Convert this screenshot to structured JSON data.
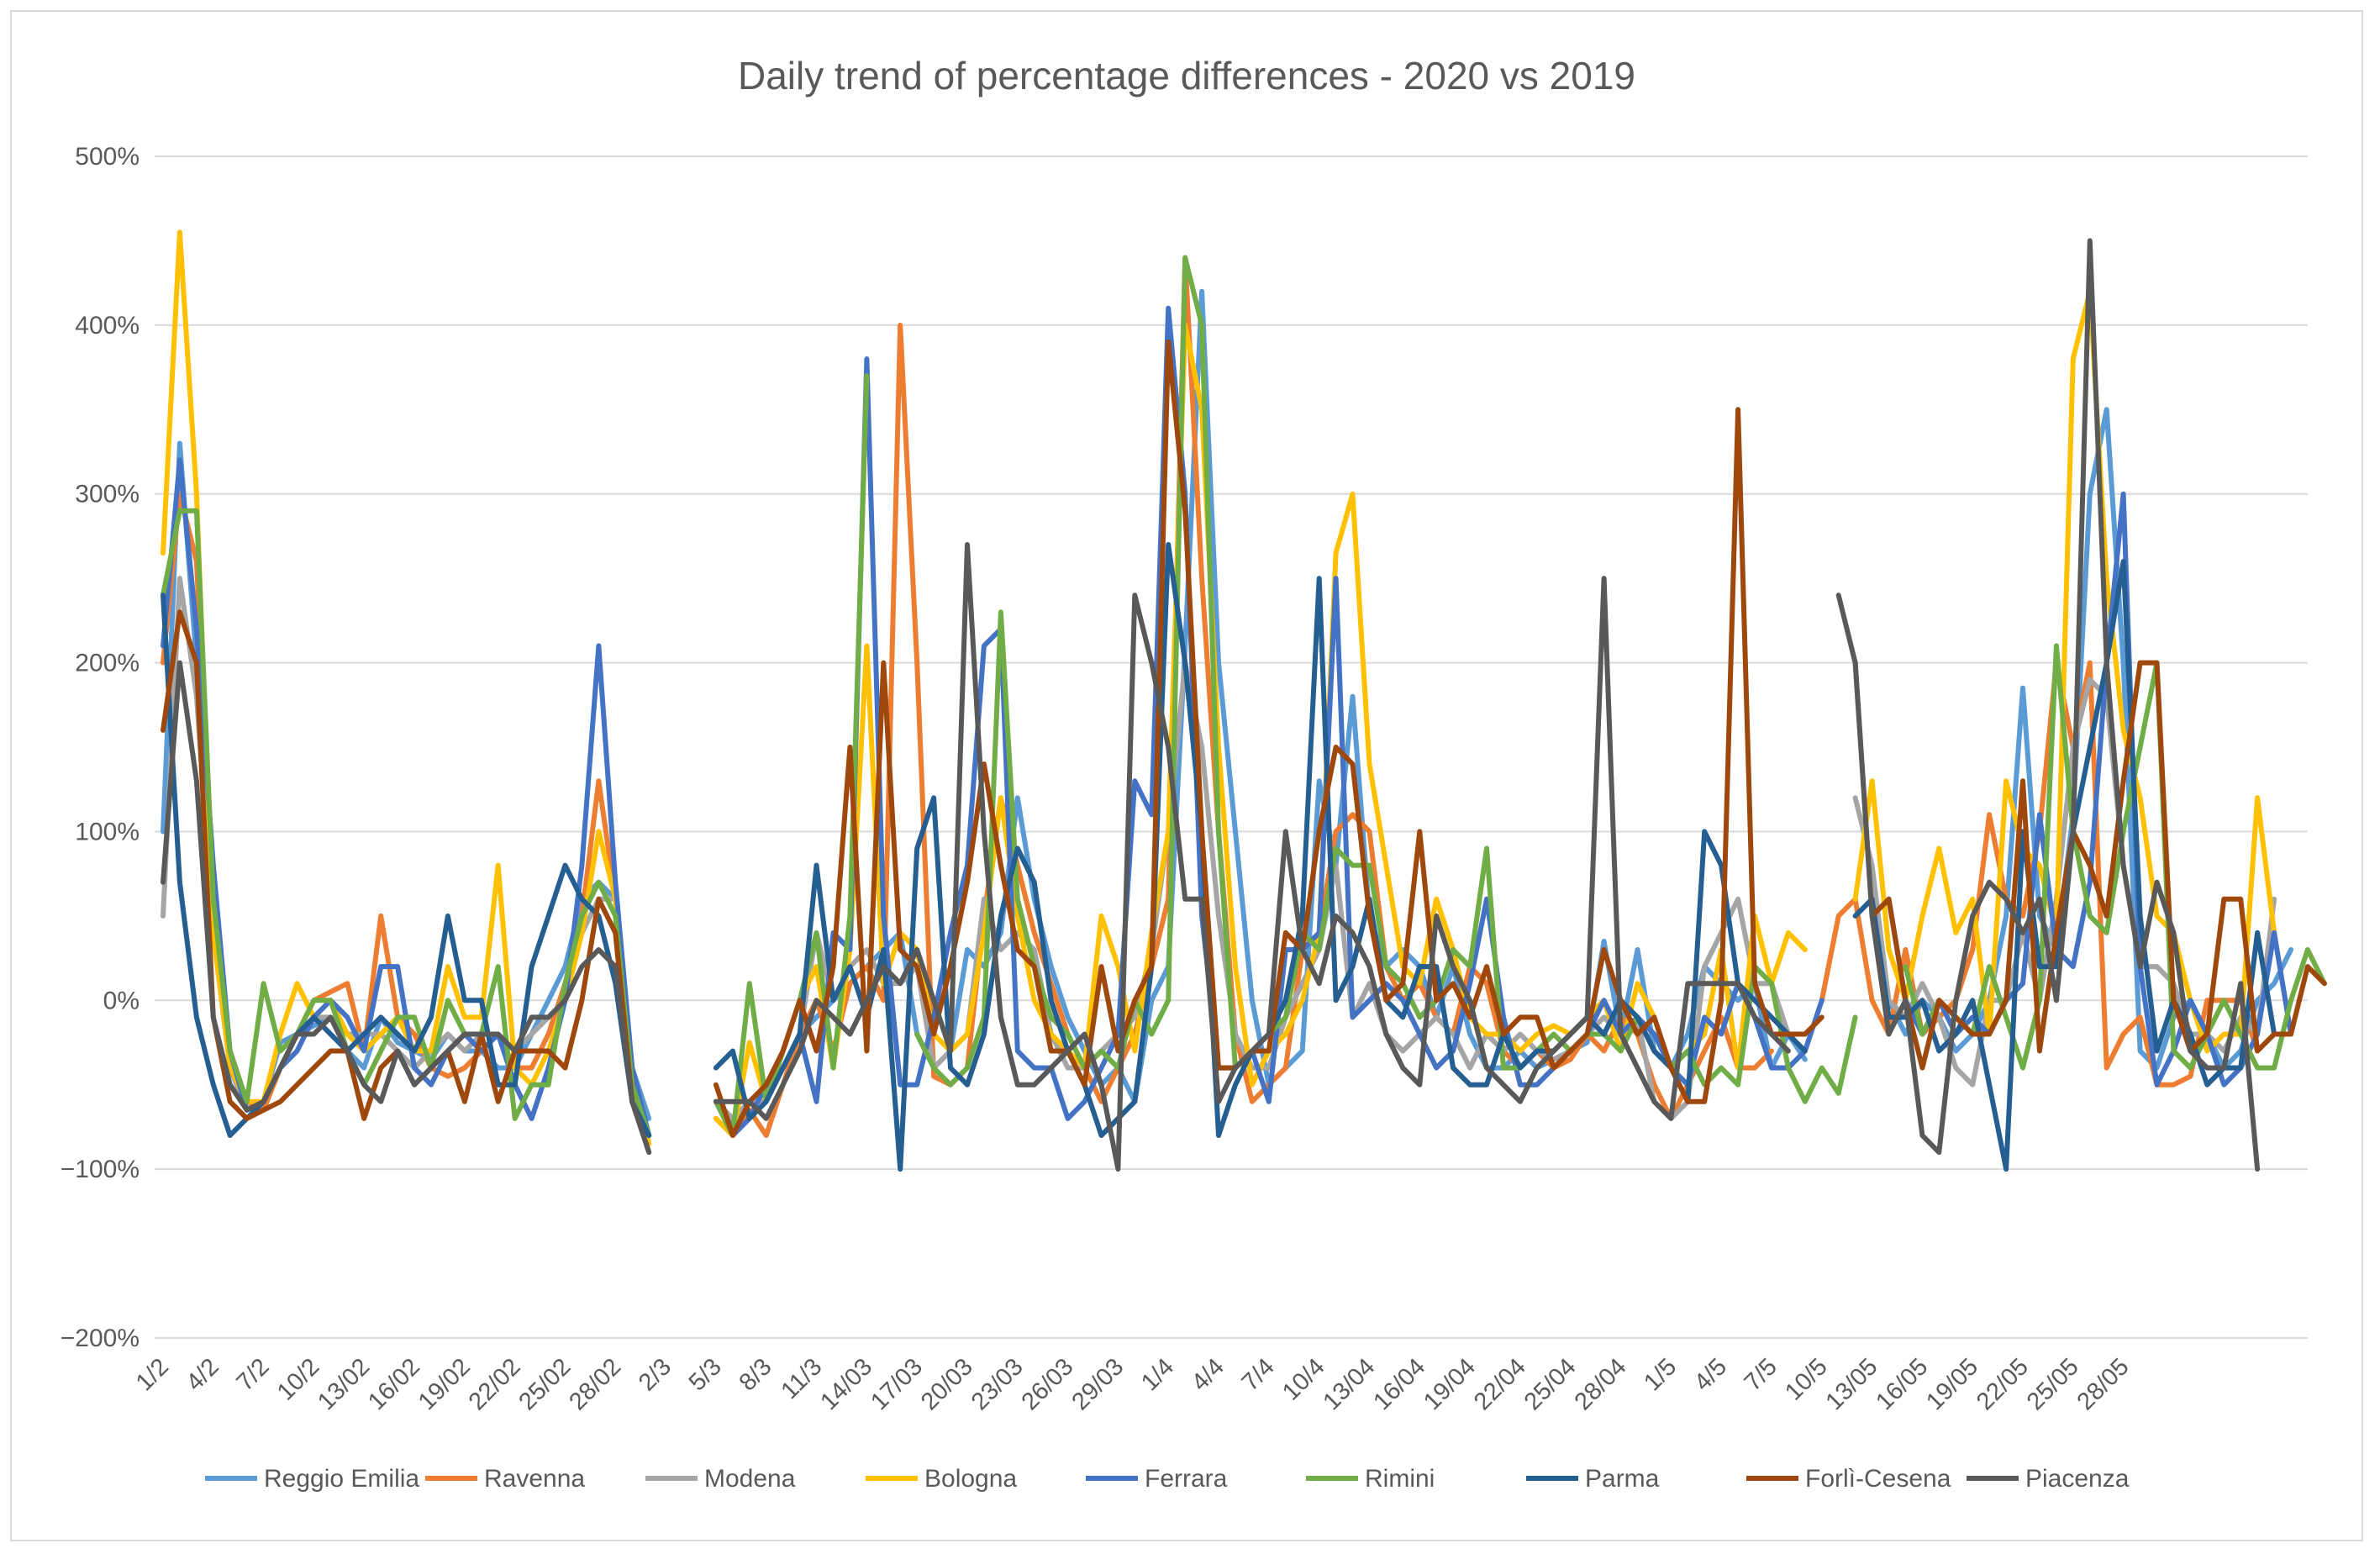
{
  "chart_data": {
    "type": "line",
    "title": "Daily trend of percentage differences - 2020 vs 2019",
    "xlabel": "",
    "ylabel": "",
    "ylim": [
      -200,
      500
    ],
    "y_ticks": [
      500,
      400,
      300,
      200,
      100,
      0,
      -100,
      -200
    ],
    "y_tick_labels": [
      "500%",
      "400%",
      "300%",
      "200%",
      "100%",
      "0%",
      "−100%",
      "−200%"
    ],
    "x_tick_labels": [
      "1/2",
      "4/2",
      "7/2",
      "10/2",
      "13/02",
      "16/02",
      "19/02",
      "22/02",
      "25/02",
      "28/02",
      "2/3",
      "5/3",
      "8/3",
      "11/3",
      "14/03",
      "17/03",
      "20/03",
      "23/03",
      "26/03",
      "29/03",
      "1/4",
      "4/4",
      "7/4",
      "10/4",
      "13/04",
      "16/04",
      "19/04",
      "22/04",
      "25/04",
      "28/04",
      "1/5",
      "4/5",
      "7/5",
      "10/5",
      "13/05",
      "16/05",
      "19/05",
      "22/05",
      "25/05",
      "28/05"
    ],
    "gaps": [
      [
        28,
        31
      ],
      [
        91,
        93
      ]
    ],
    "series": [
      {
        "name": "Reggio Emilia",
        "color": "#5b9bd5",
        "values": [
          100,
          330,
          200,
          40,
          -40,
          -65,
          -60,
          -25,
          -20,
          -15,
          -10,
          -30,
          -40,
          -10,
          -25,
          -30,
          -35,
          -20,
          -30,
          -30,
          -40,
          -40,
          -20,
          0,
          20,
          60,
          70,
          60,
          -40,
          -70,
          null,
          null,
          null,
          -60,
          -75,
          -60,
          -55,
          -40,
          -20,
          -10,
          0,
          10,
          20,
          30,
          40,
          -20,
          -40,
          -30,
          30,
          20,
          40,
          120,
          60,
          20,
          -10,
          -30,
          -50,
          -40,
          -60,
          0,
          20,
          210,
          420,
          200,
          100,
          0,
          -50,
          -40,
          -30,
          130,
          80,
          180,
          50,
          20,
          30,
          20,
          -10,
          20,
          -20,
          -40,
          -40,
          -30,
          -40,
          -35,
          -30,
          -25,
          35,
          -20,
          30,
          -30,
          -40,
          -20,
          20,
          10,
          0,
          10,
          -40,
          -20,
          -35,
          null,
          null,
          200,
          50,
          0,
          -20,
          0,
          -10,
          -30,
          -20,
          0,
          50,
          185,
          50,
          30,
          110,
          300,
          350,
          200,
          -30,
          -40,
          -10,
          0,
          -20,
          -40,
          -30,
          0,
          10,
          30
        ]
      },
      {
        "name": "Ravenna",
        "color": "#ed7d31",
        "values": [
          200,
          300,
          260,
          50,
          -30,
          -60,
          -65,
          -40,
          -20,
          0,
          5,
          10,
          -30,
          50,
          -10,
          -20,
          -40,
          -45,
          -40,
          -30,
          -20,
          -40,
          -40,
          -20,
          10,
          50,
          130,
          60,
          -60,
          -80,
          null,
          null,
          null,
          -70,
          -80,
          -65,
          -80,
          -50,
          -20,
          0,
          -30,
          10,
          20,
          0,
          400,
          200,
          -45,
          -50,
          -40,
          50,
          120,
          80,
          40,
          10,
          -20,
          -40,
          -60,
          -40,
          -20,
          20,
          60,
          440,
          250,
          100,
          -20,
          -60,
          -50,
          -40,
          30,
          40,
          100,
          110,
          100,
          20,
          0,
          10,
          -10,
          -20,
          20,
          10,
          -30,
          -40,
          -30,
          -40,
          -35,
          -20,
          -30,
          -10,
          -20,
          -50,
          -70,
          -50,
          -30,
          -10,
          -40,
          -40,
          -30,
          null,
          null,
          0,
          50,
          60,
          0,
          -20,
          30,
          -20,
          -10,
          0,
          30,
          110,
          60,
          50,
          100,
          200,
          150,
          200,
          -40,
          -20,
          -10,
          -50,
          -50,
          -45,
          0,
          0,
          0,
          -30
        ]
      },
      {
        "name": "Modena",
        "color": "#a5a5a5",
        "values": [
          50,
          250,
          180,
          40,
          -40,
          -65,
          -60,
          -40,
          -20,
          -10,
          -10,
          -20,
          -20,
          -20,
          -30,
          -40,
          -30,
          -20,
          -30,
          -20,
          -20,
          -30,
          -20,
          -10,
          0,
          40,
          60,
          60,
          -50,
          -80,
          null,
          null,
          null,
          -60,
          -70,
          -60,
          -60,
          -40,
          -20,
          40,
          0,
          20,
          30,
          10,
          10,
          20,
          -40,
          -30,
          -20,
          60,
          30,
          40,
          30,
          -20,
          -40,
          -40,
          -30,
          -20,
          -10,
          30,
          100,
          200,
          150,
          50,
          -20,
          -40,
          -40,
          -10,
          10,
          30,
          80,
          -10,
          10,
          -20,
          -30,
          -20,
          -10,
          -20,
          -40,
          -20,
          -30,
          -20,
          -30,
          -35,
          -30,
          -20,
          -10,
          -20,
          -10,
          -60,
          -70,
          -60,
          20,
          40,
          60,
          10,
          10,
          -20,
          -20,
          null,
          null,
          120,
          80,
          0,
          -10,
          10,
          -10,
          -40,
          -50,
          0,
          0,
          40,
          0,
          60,
          150,
          190,
          180,
          80,
          20,
          20,
          10,
          -20,
          -20,
          -30,
          -10,
          -20,
          60
        ]
      },
      {
        "name": "Bologna",
        "color": "#ffc000",
        "values": [
          265,
          455,
          300,
          40,
          -40,
          -60,
          -60,
          -20,
          10,
          -10,
          0,
          -20,
          -30,
          -20,
          -10,
          -30,
          -30,
          20,
          -10,
          -10,
          80,
          -40,
          -50,
          -30,
          0,
          40,
          100,
          60,
          -40,
          -85,
          null,
          null,
          null,
          -70,
          -80,
          -25,
          -60,
          -30,
          0,
          20,
          -40,
          30,
          210,
          10,
          40,
          30,
          -20,
          -30,
          -20,
          40,
          120,
          50,
          0,
          -20,
          -30,
          -40,
          50,
          20,
          -30,
          40,
          100,
          400,
          350,
          150,
          20,
          -50,
          -30,
          -20,
          0,
          40,
          265,
          300,
          140,
          80,
          20,
          10,
          60,
          30,
          -10,
          -20,
          -20,
          -30,
          -20,
          -15,
          -20,
          -10,
          0,
          -30,
          10,
          -10,
          -40,
          -30,
          -20,
          30,
          -40,
          50,
          10,
          40,
          30,
          null,
          null,
          60,
          130,
          30,
          0,
          50,
          90,
          40,
          60,
          -20,
          130,
          90,
          80,
          40,
          380,
          420,
          250,
          160,
          120,
          50,
          40,
          0,
          -30,
          -20,
          -20,
          120,
          40
        ]
      },
      {
        "name": "Ferrara",
        "color": "#4472c4",
        "values": [
          210,
          320,
          220,
          80,
          -30,
          -65,
          -60,
          -40,
          -30,
          -10,
          0,
          -10,
          -30,
          20,
          20,
          -40,
          -50,
          -30,
          -20,
          -30,
          -20,
          -50,
          -70,
          -40,
          0,
          80,
          210,
          70,
          -40,
          -80,
          null,
          null,
          null,
          -60,
          -80,
          -70,
          -50,
          -40,
          -20,
          -60,
          40,
          30,
          380,
          50,
          -50,
          -50,
          -10,
          40,
          80,
          210,
          220,
          -30,
          -40,
          -40,
          -70,
          -60,
          -40,
          -20,
          130,
          110,
          410,
          300,
          50,
          -40,
          -40,
          -30,
          -60,
          30,
          30,
          40,
          250,
          -10,
          0,
          10,
          0,
          -20,
          -40,
          -30,
          10,
          60,
          -10,
          -50,
          -50,
          -40,
          -30,
          -20,
          0,
          -20,
          -10,
          -20,
          -40,
          -50,
          -10,
          -20,
          10,
          -10,
          -40,
          -40,
          -30,
          0,
          null,
          null,
          50,
          60,
          0,
          -20,
          0,
          -20,
          -10,
          -20,
          0,
          10,
          110,
          30,
          20,
          70,
          200,
          300,
          20,
          -50,
          -30,
          0,
          -20,
          -50,
          -40,
          -20,
          40,
          -20
        ]
      },
      {
        "name": "Rimini",
        "color": "#70ad47",
        "values": [
          240,
          290,
          290,
          60,
          -30,
          -60,
          10,
          -30,
          -20,
          0,
          0,
          -30,
          -50,
          -30,
          -10,
          -10,
          -40,
          0,
          -20,
          -20,
          20,
          -70,
          -50,
          -50,
          10,
          50,
          70,
          50,
          -50,
          -80,
          null,
          null,
          null,
          -60,
          -80,
          10,
          -60,
          -30,
          0,
          40,
          -40,
          50,
          370,
          null,
          null,
          -20,
          -40,
          -50,
          -40,
          -10,
          230,
          60,
          20,
          -10,
          -20,
          -40,
          -30,
          -40,
          0,
          -20,
          0,
          440,
          400,
          100,
          -40,
          -30,
          -20,
          -10,
          40,
          30,
          90,
          80,
          80,
          20,
          10,
          -10,
          0,
          30,
          20,
          90,
          -40,
          -40,
          -30,
          -20,
          -30,
          -20,
          -20,
          -30,
          -10,
          -30,
          -40,
          -30,
          -50,
          -40,
          -50,
          20,
          10,
          -40,
          -60,
          -40,
          -55,
          -10,
          null,
          null,
          20,
          -20,
          0,
          -10,
          -20,
          20,
          -10,
          -40,
          0,
          210,
          100,
          50,
          40,
          100,
          150,
          200,
          -30,
          -40,
          -20,
          0,
          -20,
          -40,
          -40,
          0,
          30,
          10
        ]
      },
      {
        "name": "Parma",
        "color": "#255e91",
        "values": [
          240,
          70,
          -10,
          -50,
          -80,
          -70,
          -60,
          -40,
          -20,
          -10,
          -20,
          -30,
          -20,
          -10,
          -20,
          -30,
          -10,
          50,
          0,
          0,
          -50,
          -50,
          20,
          50,
          80,
          60,
          50,
          10,
          -60,
          -80,
          null,
          null,
          null,
          -40,
          -30,
          -70,
          -60,
          -40,
          -20,
          80,
          0,
          20,
          -10,
          30,
          -100,
          90,
          120,
          -40,
          -50,
          -20,
          50,
          90,
          70,
          0,
          -30,
          -50,
          -80,
          -70,
          -60,
          20,
          270,
          200,
          100,
          -80,
          -50,
          -30,
          -20,
          0,
          50,
          250,
          0,
          20,
          60,
          0,
          -10,
          20,
          20,
          -40,
          -50,
          -50,
          -20,
          -40,
          -30,
          -30,
          -20,
          -10,
          -20,
          0,
          -10,
          -30,
          -40,
          -60,
          100,
          80,
          10,
          0,
          -10,
          -20,
          -30,
          null,
          null,
          50,
          60,
          -10,
          -10,
          0,
          -30,
          -20,
          0,
          -50,
          -100,
          100,
          20,
          20,
          100,
          150,
          200,
          260,
          50,
          -30,
          0,
          -20,
          -50,
          -40,
          -40,
          40,
          -20
        ]
      },
      {
        "name": "Forlì-Cesena",
        "color": "#9e480e",
        "values": [
          160,
          230,
          200,
          -10,
          -60,
          -70,
          -65,
          -60,
          -50,
          -40,
          -30,
          -30,
          -70,
          -40,
          -30,
          -50,
          -40,
          -30,
          -60,
          -20,
          -60,
          -30,
          -30,
          -30,
          -40,
          0,
          60,
          40,
          -60,
          -90,
          null,
          null,
          null,
          -50,
          -80,
          -60,
          -50,
          -30,
          0,
          -30,
          20,
          150,
          -30,
          200,
          30,
          20,
          -20,
          20,
          70,
          140,
          80,
          30,
          20,
          -30,
          -30,
          -50,
          20,
          -30,
          0,
          20,
          390,
          290,
          100,
          -40,
          -40,
          -30,
          -30,
          40,
          30,
          100,
          150,
          140,
          50,
          0,
          10,
          100,
          0,
          10,
          -10,
          20,
          -20,
          -10,
          -10,
          -40,
          -30,
          -20,
          30,
          0,
          -20,
          -10,
          -40,
          -60,
          -60,
          0,
          350,
          10,
          -20,
          -20,
          -20,
          -10,
          null,
          null,
          50,
          60,
          0,
          -40,
          0,
          -10,
          -20,
          -20,
          0,
          130,
          -30,
          40,
          100,
          80,
          50,
          130,
          200,
          200,
          0,
          -30,
          -20,
          60,
          60,
          -30,
          -20,
          -20,
          20,
          10
        ]
      },
      {
        "name": "Piacenza",
        "color": "#595959",
        "values": [
          70,
          200,
          130,
          -10,
          -50,
          -65,
          -60,
          -40,
          -20,
          -20,
          -10,
          -30,
          -50,
          -60,
          -30,
          -50,
          -40,
          -30,
          -20,
          -20,
          -20,
          -30,
          -10,
          -10,
          0,
          20,
          30,
          20,
          -60,
          -90,
          null,
          null,
          null,
          -60,
          -60,
          -60,
          -70,
          -50,
          -30,
          0,
          -10,
          -20,
          0,
          20,
          10,
          30,
          0,
          -30,
          270,
          100,
          -10,
          -50,
          -50,
          -40,
          -30,
          -20,
          -50,
          -100,
          240,
          200,
          150,
          60,
          60,
          -60,
          -40,
          -30,
          -20,
          100,
          30,
          10,
          50,
          40,
          20,
          -20,
          -40,
          -50,
          50,
          20,
          0,
          -40,
          -50,
          -60,
          -40,
          -30,
          -20,
          -10,
          250,
          -20,
          -40,
          -60,
          -70,
          10,
          10,
          10,
          10,
          -10,
          -20,
          -30,
          null,
          null,
          240,
          200,
          50,
          -20,
          0,
          -80,
          -90,
          0,
          50,
          70,
          60,
          40,
          60,
          0,
          100,
          450,
          200,
          80,
          20,
          70,
          40,
          -30,
          -40,
          -40,
          10,
          -100
        ]
      }
    ]
  }
}
